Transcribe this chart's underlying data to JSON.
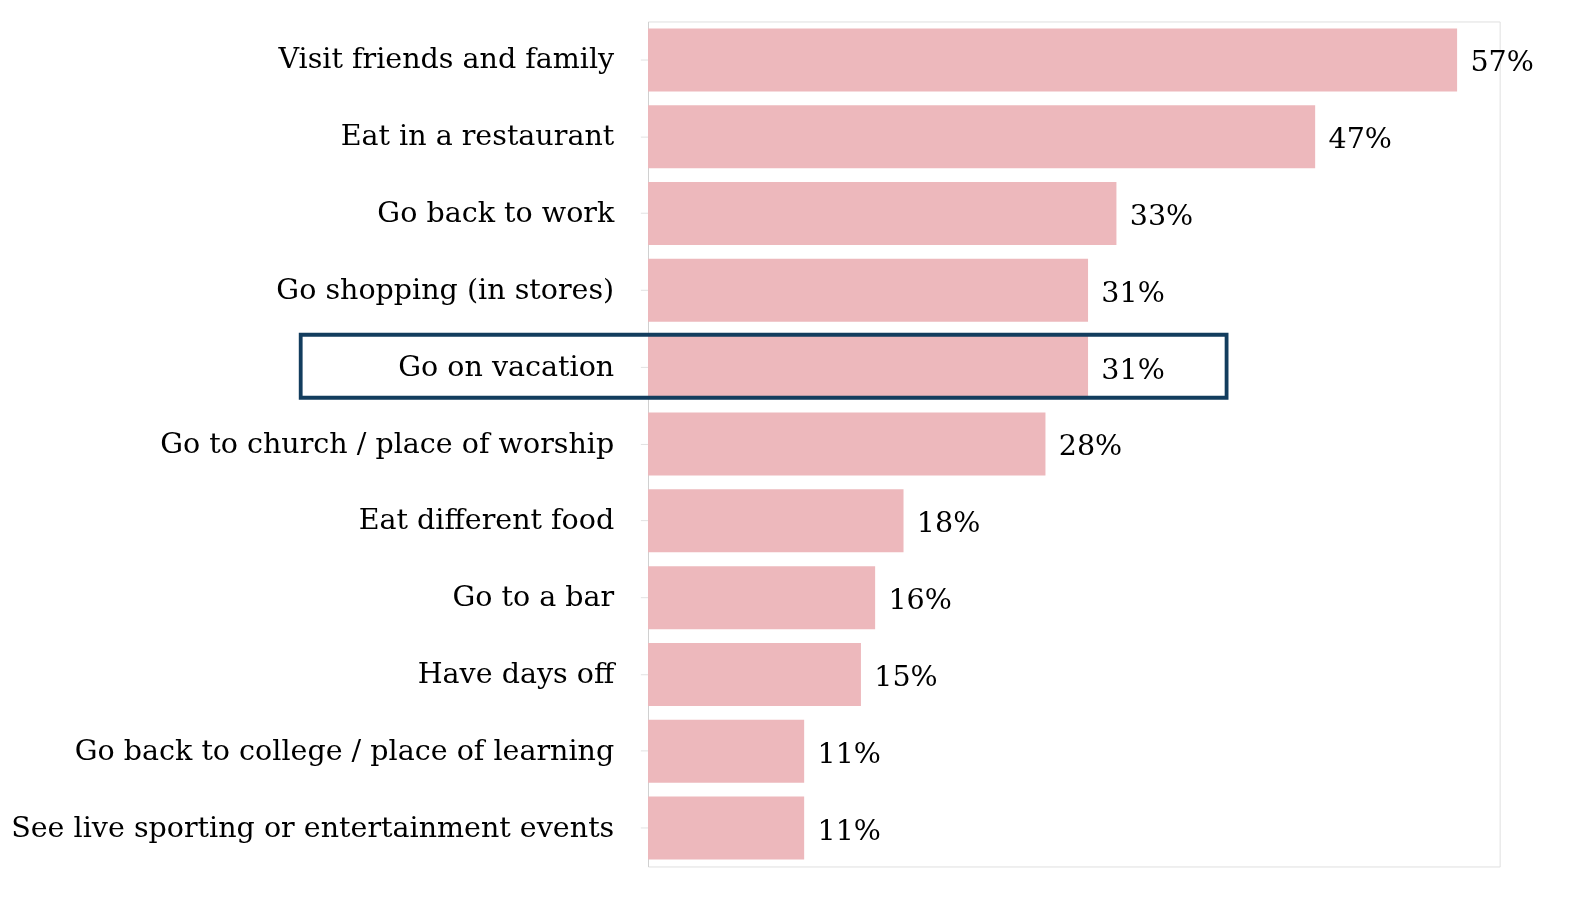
{
  "chart_data": {
    "type": "bar",
    "orientation": "horizontal",
    "categories": [
      "Visit friends and family",
      "Eat in a restaurant",
      "Go back to work",
      "Go shopping (in stores)",
      "Go on vacation",
      "Go to church / place of worship",
      "Eat different food",
      "Go to a bar",
      "Have days off",
      "Go back to college / place of learning",
      "See live sporting or entertainment events"
    ],
    "values": [
      57,
      47,
      33,
      31,
      31,
      28,
      18,
      16,
      15,
      11,
      11
    ],
    "value_labels": [
      "57%",
      "47%",
      "33%",
      "31%",
      "31%",
      "28%",
      "18%",
      "16%",
      "15%",
      "11%",
      "11%"
    ],
    "color": "#edb8bc",
    "grid": false,
    "tick_labels": "y"
  }
}
